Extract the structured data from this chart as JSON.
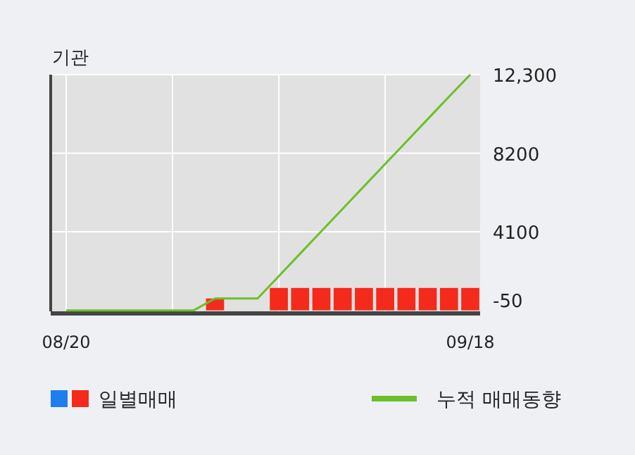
{
  "chart_data": {
    "type": "bar",
    "title": "기관",
    "categories": [
      "08/20",
      null,
      null,
      null,
      null,
      null,
      null,
      null,
      null,
      null,
      null,
      null,
      null,
      null,
      null,
      null,
      null,
      null,
      null,
      "09/18"
    ],
    "series": [
      {
        "name": "일별매매",
        "type": "bar",
        "colors": [
          "#1e7ef0",
          "#1e7ef0",
          "#1e7ef0",
          "#1e7ef0",
          "#1e7ef0",
          "#1e7ef0",
          "#1e7ef0",
          "#f42a1c",
          "#1e7ef0",
          "#1e7ef0",
          "#f42a1c",
          "#f42a1c",
          "#f42a1c",
          "#f42a1c",
          "#f42a1c",
          "#f42a1c",
          "#f42a1c",
          "#f42a1c",
          "#f42a1c",
          "#f42a1c"
        ],
        "values": [
          0,
          0,
          0,
          0,
          0,
          0,
          0,
          620,
          0,
          0,
          1170,
          1170,
          1170,
          1170,
          1170,
          1170,
          1170,
          1170,
          1170,
          1170
        ]
      },
      {
        "name": "누적 매매동향",
        "type": "line",
        "color": "#6cbf2a",
        "values": [
          0,
          0,
          0,
          0,
          0,
          0,
          0,
          620,
          620,
          620,
          1790,
          2960,
          4130,
          5300,
          6470,
          7640,
          8810,
          9980,
          11150,
          12300
        ]
      }
    ],
    "ylim": [
      -50,
      12300
    ],
    "yticks": [
      -50,
      4100,
      8200,
      {
        "value": 12300,
        "label": "12,300"
      }
    ],
    "grid": true,
    "legend": "bottom"
  }
}
